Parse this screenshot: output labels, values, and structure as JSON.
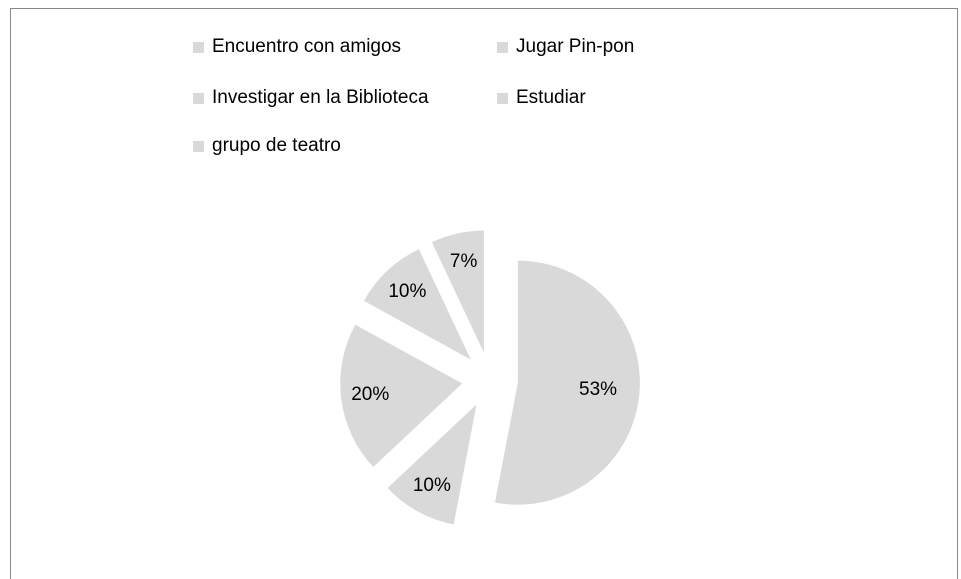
{
  "chart_data": {
    "type": "pie",
    "categories": [
      "Encuentro con amigos",
      "Jugar Pin-pon",
      "Investigar en la Biblioteca",
      "Estudiar",
      "grupo de teatro"
    ],
    "values": [
      53,
      10,
      20,
      10,
      7
    ],
    "value_labels": [
      "53%",
      "10%",
      "20%",
      "10%",
      "7%"
    ],
    "color": "#d9d9d9",
    "legend": "top"
  }
}
